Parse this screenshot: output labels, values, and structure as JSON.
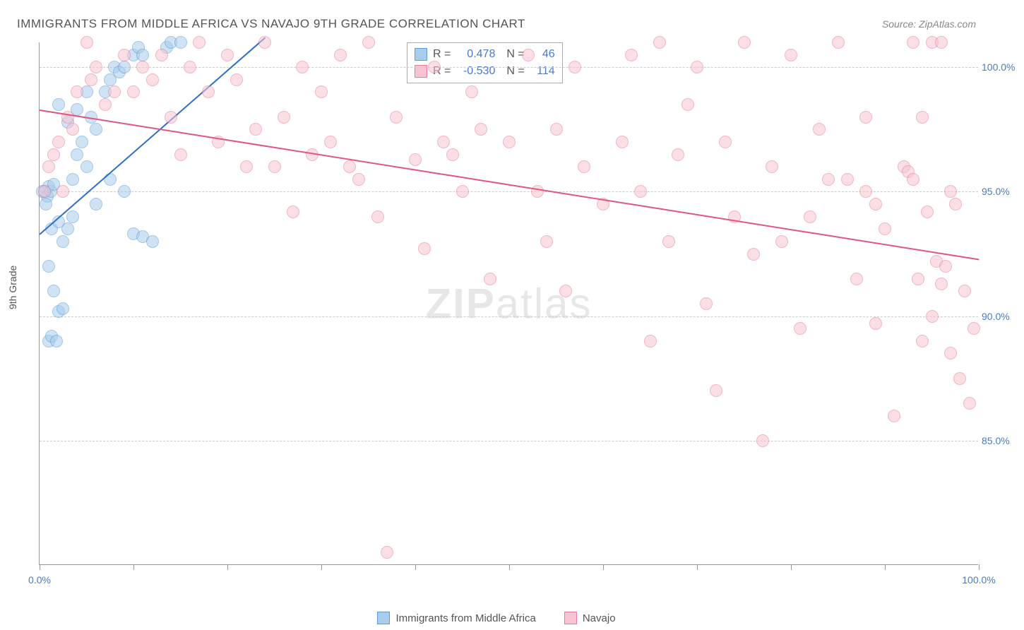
{
  "header": {
    "title": "IMMIGRANTS FROM MIDDLE AFRICA VS NAVAJO 9TH GRADE CORRELATION CHART",
    "source": "Source: ZipAtlas.com"
  },
  "watermark": {
    "part1": "ZIP",
    "part2": "atlas"
  },
  "chart": {
    "type": "scatter",
    "ylabel": "9th Grade",
    "xlim": [
      0,
      100
    ],
    "ylim": [
      80,
      101
    ],
    "xticks": [
      0,
      10,
      20,
      30,
      40,
      50,
      60,
      70,
      80,
      90,
      100
    ],
    "xtick_labels": {
      "0": "0.0%",
      "100": "100.0%"
    },
    "yticks": [
      85,
      90,
      95,
      100
    ],
    "ytick_labels": [
      "85.0%",
      "90.0%",
      "95.0%",
      "100.0%"
    ],
    "grid_color": "#cccccc",
    "axis_color": "#999999",
    "label_color": "#4a7ac7",
    "background_color": "#ffffff",
    "marker_radius": 9,
    "marker_opacity": 0.55,
    "series": [
      {
        "name": "Immigrants from Middle Africa",
        "fill": "#a9cdec",
        "stroke": "#5a9bd5",
        "trend_color": "#2e6fc9",
        "R": "0.478",
        "N": "46",
        "trend": {
          "x1": 0,
          "y1": 93.3,
          "x2": 24,
          "y2": 101.2
        },
        "points": [
          [
            0.5,
            95
          ],
          [
            0.8,
            94.8
          ],
          [
            1,
            95.2
          ],
          [
            1.2,
            95
          ],
          [
            1.5,
            95.3
          ],
          [
            0.3,
            95
          ],
          [
            0.7,
            94.5
          ],
          [
            1,
            92
          ],
          [
            1.3,
            93.5
          ],
          [
            2,
            93.8
          ],
          [
            2.5,
            93
          ],
          [
            3,
            93.5
          ],
          [
            3.5,
            94
          ],
          [
            1.5,
            91
          ],
          [
            2,
            90.2
          ],
          [
            2.5,
            90.3
          ],
          [
            1,
            89
          ],
          [
            1.3,
            89.2
          ],
          [
            1.8,
            89
          ],
          [
            4,
            96.5
          ],
          [
            4.5,
            97
          ],
          [
            5,
            96
          ],
          [
            5.5,
            98
          ],
          [
            6,
            97.5
          ],
          [
            7,
            99
          ],
          [
            7.5,
            99.5
          ],
          [
            8,
            100
          ],
          [
            8.5,
            99.8
          ],
          [
            9,
            100
          ],
          [
            10,
            100.5
          ],
          [
            10.5,
            100.8
          ],
          [
            11,
            100.5
          ],
          [
            13.5,
            100.8
          ],
          [
            14,
            101
          ],
          [
            15,
            101
          ],
          [
            2,
            98.5
          ],
          [
            3,
            97.8
          ],
          [
            4,
            98.3
          ],
          [
            5,
            99
          ],
          [
            3.5,
            95.5
          ],
          [
            6,
            94.5
          ],
          [
            7.5,
            95.5
          ],
          [
            9,
            95
          ],
          [
            10,
            93.3
          ],
          [
            11,
            93.2
          ],
          [
            12,
            93
          ]
        ]
      },
      {
        "name": "Navajo",
        "fill": "#f6c5d1",
        "stroke": "#e87a9a",
        "trend_color": "#e25581",
        "R": "-0.530",
        "N": "114",
        "trend": {
          "x1": 0,
          "y1": 98.3,
          "x2": 100,
          "y2": 92.3
        },
        "points": [
          [
            0.5,
            95
          ],
          [
            1,
            96
          ],
          [
            1.5,
            96.5
          ],
          [
            2,
            97
          ],
          [
            2.5,
            95
          ],
          [
            3,
            98
          ],
          [
            3.5,
            97.5
          ],
          [
            4,
            99
          ],
          [
            5,
            101
          ],
          [
            5.5,
            99.5
          ],
          [
            6,
            100
          ],
          [
            7,
            98.5
          ],
          [
            8,
            99
          ],
          [
            9,
            100.5
          ],
          [
            10,
            99
          ],
          [
            11,
            100
          ],
          [
            12,
            99.5
          ],
          [
            13,
            100.5
          ],
          [
            14,
            98
          ],
          [
            15,
            96.5
          ],
          [
            16,
            100
          ],
          [
            17,
            101
          ],
          [
            18,
            99
          ],
          [
            20,
            100.5
          ],
          [
            21,
            99.5
          ],
          [
            22,
            96
          ],
          [
            23,
            97.5
          ],
          [
            24,
            101
          ],
          [
            26,
            98
          ],
          [
            27,
            94.2
          ],
          [
            28,
            100
          ],
          [
            29,
            96.5
          ],
          [
            30,
            99
          ],
          [
            31,
            97
          ],
          [
            32,
            100.5
          ],
          [
            33,
            96
          ],
          [
            34,
            95.5
          ],
          [
            35,
            101
          ],
          [
            37,
            80.5
          ],
          [
            38,
            98
          ],
          [
            40,
            96.3
          ],
          [
            41,
            92.7
          ],
          [
            42,
            100
          ],
          [
            43,
            97
          ],
          [
            44,
            96.5
          ],
          [
            45,
            95
          ],
          [
            46,
            99
          ],
          [
            48,
            91.5
          ],
          [
            50,
            97
          ],
          [
            52,
            100.5
          ],
          [
            53,
            95
          ],
          [
            54,
            93
          ],
          [
            55,
            97.5
          ],
          [
            56,
            91
          ],
          [
            57,
            100
          ],
          [
            58,
            96
          ],
          [
            60,
            94.5
          ],
          [
            62,
            97
          ],
          [
            63,
            100.5
          ],
          [
            64,
            95
          ],
          [
            65,
            89
          ],
          [
            66,
            101
          ],
          [
            67,
            93
          ],
          [
            68,
            96.5
          ],
          [
            70,
            100
          ],
          [
            71,
            90.5
          ],
          [
            72,
            87
          ],
          [
            73,
            97
          ],
          [
            74,
            94
          ],
          [
            75,
            101
          ],
          [
            76,
            92.5
          ],
          [
            77,
            85
          ],
          [
            78,
            96
          ],
          [
            80,
            100.5
          ],
          [
            81,
            89.5
          ],
          [
            82,
            94
          ],
          [
            83,
            97.5
          ],
          [
            85,
            101
          ],
          [
            86,
            95.5
          ],
          [
            87,
            91.5
          ],
          [
            88,
            98
          ],
          [
            89,
            89.7
          ],
          [
            90,
            93.5
          ],
          [
            91,
            86
          ],
          [
            92,
            96
          ],
          [
            92.5,
            95.8
          ],
          [
            93,
            95.5
          ],
          [
            93.5,
            91.5
          ],
          [
            94,
            89
          ],
          [
            94.5,
            94.2
          ],
          [
            95,
            90
          ],
          [
            95.5,
            92.2
          ],
          [
            96,
            91.3
          ],
          [
            96.5,
            92
          ],
          [
            97,
            88.5
          ],
          [
            97.5,
            94.5
          ],
          [
            98,
            87.5
          ],
          [
            98.5,
            91
          ],
          [
            99,
            86.5
          ],
          [
            99.5,
            89.5
          ],
          [
            95,
            101
          ],
          [
            96,
            101
          ],
          [
            97,
            95
          ],
          [
            93,
            101
          ],
          [
            94,
            98
          ],
          [
            88,
            95
          ],
          [
            89,
            94.5
          ],
          [
            84,
            95.5
          ],
          [
            79,
            93
          ],
          [
            69,
            98.5
          ],
          [
            47,
            97.5
          ],
          [
            36,
            94
          ],
          [
            25,
            96
          ],
          [
            19,
            97
          ]
        ]
      }
    ]
  },
  "legend_top": {
    "rows": [
      {
        "swatch_fill": "#a9cdec",
        "swatch_stroke": "#5a9bd5",
        "r_label": "R =",
        "r_val": "0.478",
        "n_label": "N =",
        "n_val": "46"
      },
      {
        "swatch_fill": "#f6c5d1",
        "swatch_stroke": "#e87a9a",
        "r_label": "R =",
        "r_val": "-0.530",
        "n_label": "N =",
        "n_val": "114"
      }
    ]
  },
  "legend_bottom": {
    "items": [
      {
        "swatch_fill": "#a9cdec",
        "swatch_stroke": "#5a9bd5",
        "label": "Immigrants from Middle Africa"
      },
      {
        "swatch_fill": "#f6c5d1",
        "swatch_stroke": "#e87a9a",
        "label": "Navajo"
      }
    ]
  }
}
